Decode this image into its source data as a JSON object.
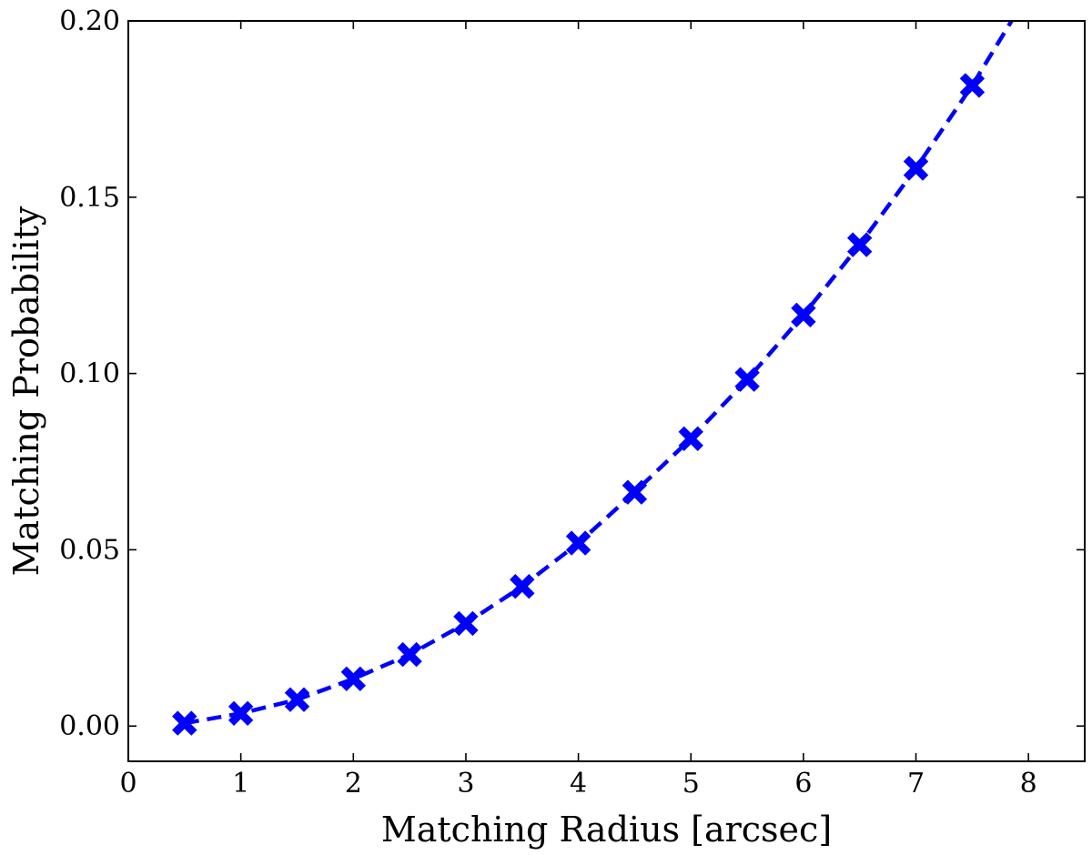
{
  "chart_data": {
    "type": "line",
    "xlabel": "Matching Radius [arcsec]",
    "ylabel": "Matching Probability",
    "xlim": [
      0,
      8.5
    ],
    "ylim": [
      -0.01,
      0.2
    ],
    "x_ticks": [
      0,
      1,
      2,
      3,
      4,
      5,
      6,
      7,
      8
    ],
    "x_tick_labels": [
      "0",
      "1",
      "2",
      "3",
      "4",
      "5",
      "6",
      "7",
      "8"
    ],
    "y_ticks": [
      0.0,
      0.05,
      0.1,
      0.15,
      0.2
    ],
    "y_tick_labels": [
      "0.00",
      "0.05",
      "0.10",
      "0.15",
      "0.20"
    ],
    "grid": false,
    "legend": "none",
    "series": [
      {
        "color": "#0000ff",
        "marker": "X",
        "line_style": "dashed",
        "x": [
          0.5,
          1.0,
          1.5,
          2.0,
          2.5,
          3.0,
          3.5,
          4.0,
          4.5,
          5.0,
          5.5,
          6.0,
          6.5,
          7.0,
          7.5
        ],
        "values": [
          0.0008,
          0.0036,
          0.0075,
          0.0134,
          0.0203,
          0.0291,
          0.0396,
          0.0519,
          0.0663,
          0.0815,
          0.0983,
          0.1166,
          0.1365,
          0.1582,
          0.1817
        ]
      }
    ],
    "trend_extension": {
      "x": [
        7.5,
        7.85
      ],
      "values": [
        0.1817,
        0.2
      ]
    }
  }
}
